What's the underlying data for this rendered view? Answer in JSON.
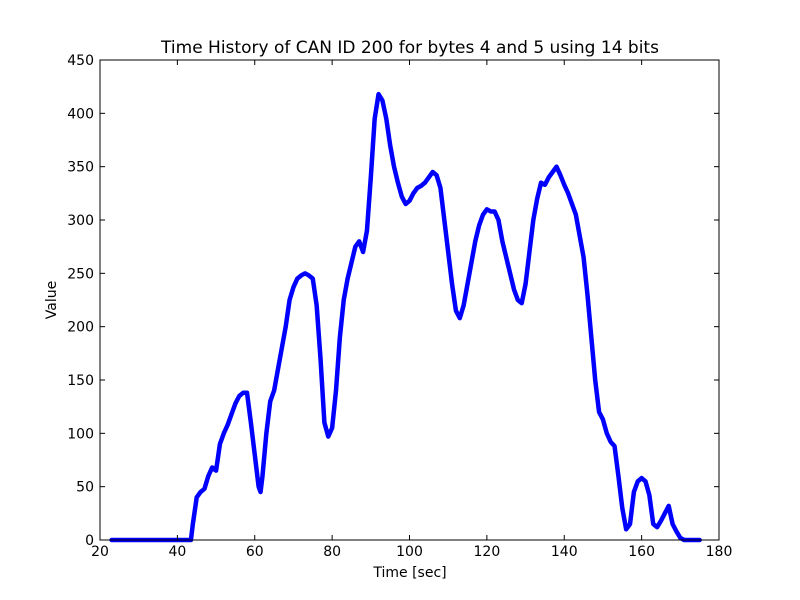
{
  "chart_data": {
    "type": "line",
    "title": "Time History of CAN ID 200 for bytes 4 and 5 using 14 bits",
    "x_label": "Time [sec]",
    "y_label": "Value",
    "xlim": [
      20,
      180
    ],
    "xticks": [
      20,
      40,
      60,
      80,
      100,
      120,
      140,
      160,
      180
    ],
    "ylim": [
      0,
      450
    ],
    "yticks": [
      0,
      50,
      100,
      150,
      200,
      250,
      300,
      350,
      400,
      450
    ],
    "grid": false,
    "series": [
      {
        "color": "#0000ff",
        "x": [
          23,
          43.5,
          44,
          45,
          46,
          47,
          48,
          49,
          50,
          51,
          52,
          53,
          54,
          55,
          56,
          57,
          58,
          59,
          60,
          61,
          61.5,
          62,
          63,
          64,
          65,
          66,
          67,
          68,
          69,
          70,
          71,
          72,
          73,
          74,
          75,
          76,
          77,
          78,
          79,
          80,
          81,
          82,
          83,
          84,
          85,
          86,
          87,
          88,
          89,
          90,
          91,
          92,
          93,
          94,
          95,
          96,
          97,
          98,
          99,
          100,
          101,
          102,
          103,
          104,
          105,
          106,
          107,
          108,
          109,
          110,
          111,
          112,
          113,
          114,
          115,
          116,
          117,
          118,
          119,
          120,
          121,
          122,
          123,
          124,
          125,
          126,
          127,
          128,
          129,
          130,
          131,
          132,
          133,
          134,
          135,
          136,
          137,
          138,
          139,
          140,
          141,
          142,
          143,
          144,
          145,
          146,
          147,
          148,
          149,
          150,
          151,
          152,
          153,
          154,
          155,
          156,
          157,
          158,
          159,
          160,
          161,
          162,
          163,
          164,
          165,
          166,
          167,
          168,
          169,
          170,
          171,
          175
        ],
        "values": [
          0,
          0,
          15,
          40,
          45,
          48,
          60,
          68,
          65,
          90,
          100,
          108,
          118,
          128,
          135,
          138,
          138,
          110,
          80,
          50,
          45,
          60,
          100,
          130,
          140,
          160,
          180,
          200,
          225,
          237,
          245,
          248,
          250,
          248,
          245,
          220,
          170,
          110,
          97,
          105,
          140,
          190,
          225,
          245,
          260,
          275,
          280,
          270,
          290,
          340,
          395,
          418,
          412,
          395,
          370,
          350,
          335,
          322,
          315,
          318,
          325,
          330,
          332,
          335,
          340,
          345,
          342,
          330,
          300,
          270,
          240,
          215,
          208,
          220,
          240,
          260,
          280,
          295,
          305,
          310,
          308,
          308,
          300,
          280,
          265,
          250,
          235,
          225,
          222,
          240,
          270,
          300,
          320,
          335,
          333,
          340,
          345,
          350,
          342,
          333,
          325,
          315,
          305,
          285,
          265,
          230,
          190,
          150,
          120,
          113,
          100,
          92,
          88,
          60,
          30,
          10,
          15,
          45,
          55,
          58,
          55,
          42,
          15,
          12,
          18,
          25,
          32,
          15,
          8,
          2,
          0,
          0
        ]
      }
    ]
  }
}
